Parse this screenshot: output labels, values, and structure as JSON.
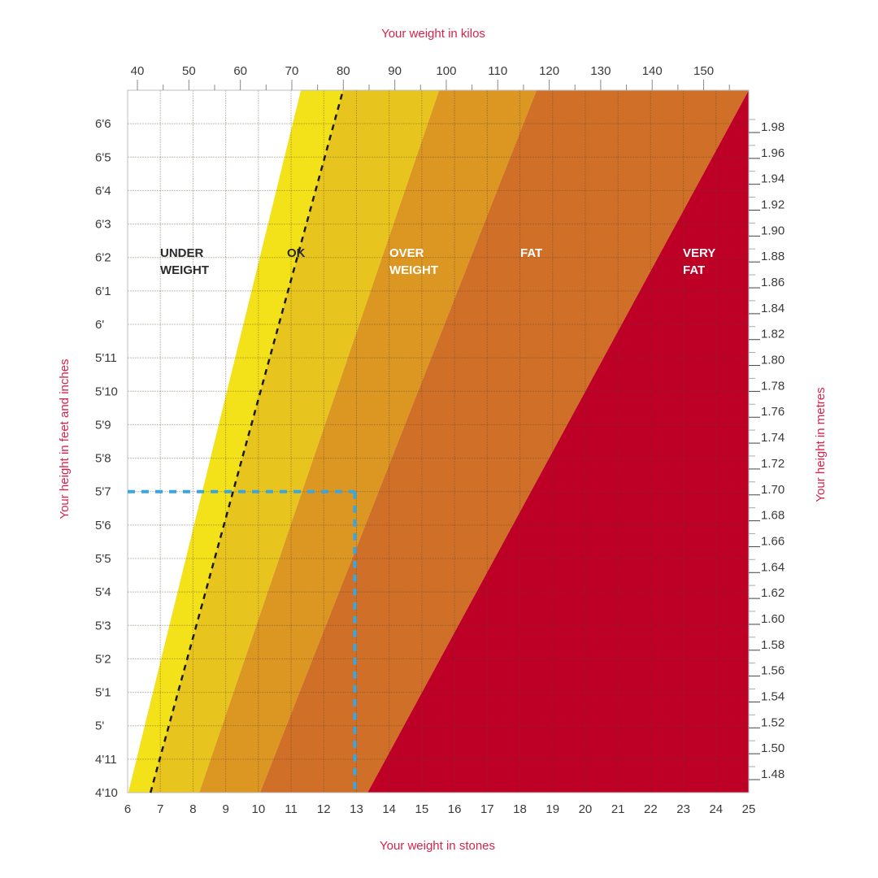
{
  "chart_data": {
    "type": "area",
    "title": "",
    "top_axis_label": "Your weight in kilos",
    "xlabel": "Your weight in stones",
    "ylabel_left": "Your height in feet and inches",
    "ylabel_right": "Your height in metres",
    "x_stones": {
      "range": [
        6,
        25
      ],
      "ticks": [
        6,
        7,
        8,
        9,
        10,
        11,
        12,
        13,
        14,
        15,
        16,
        17,
        18,
        19,
        20,
        21,
        22,
        23,
        24,
        25
      ]
    },
    "x_kilos": {
      "ticks": [
        40,
        50,
        60,
        70,
        80,
        90,
        100,
        110,
        120,
        130,
        140,
        150
      ],
      "minor_step": 5
    },
    "y_feet_inches": {
      "range_inches": [
        58,
        79
      ],
      "ticks": [
        {
          "label": "6'6",
          "inches": 78
        },
        {
          "label": "6'5",
          "inches": 77
        },
        {
          "label": "6'4",
          "inches": 76
        },
        {
          "label": "6'3",
          "inches": 75
        },
        {
          "label": "6'2",
          "inches": 74
        },
        {
          "label": "6'1",
          "inches": 73
        },
        {
          "label": "6'",
          "inches": 72
        },
        {
          "label": "5'11",
          "inches": 71
        },
        {
          "label": "5'10",
          "inches": 70
        },
        {
          "label": "5'9",
          "inches": 69
        },
        {
          "label": "5'8",
          "inches": 68
        },
        {
          "label": "5'7",
          "inches": 67
        },
        {
          "label": "5'6",
          "inches": 66
        },
        {
          "label": "5'5",
          "inches": 65
        },
        {
          "label": "5'4",
          "inches": 64
        },
        {
          "label": "5'3",
          "inches": 63
        },
        {
          "label": "5'2",
          "inches": 62
        },
        {
          "label": "5'1",
          "inches": 61
        },
        {
          "label": "5'",
          "inches": 60
        },
        {
          "label": "4'11",
          "inches": 59
        },
        {
          "label": "4'10",
          "inches": 58
        }
      ]
    },
    "y_metres": {
      "ticks": [
        "1.98",
        "1.96",
        "1.94",
        "1.92",
        "1.90",
        "1.88",
        "1.86",
        "1.84",
        "1.82",
        "1.80",
        "1.78",
        "1.76",
        "1.74",
        "1.72",
        "1.70",
        "1.68",
        "1.66",
        "1.64",
        "1.62",
        "1.60",
        "1.58",
        "1.56",
        "1.54",
        "1.52",
        "1.50",
        "1.48"
      ]
    },
    "zones": [
      {
        "name": "UNDER WEIGHT",
        "lines": [
          "UNDER",
          "WEIGHT"
        ],
        "color": "#ffffff",
        "label_color": "#2a2a2a",
        "right_boundary_stones": {
          "at_4ft10": 6.02,
          "at_6ft7": 11.3
        }
      },
      {
        "name": "OK (lower)",
        "lines": [],
        "color": "#f3e11a",
        "right_boundary_stones": {
          "at_4ft10": 6.7,
          "at_6ft7": 12.59
        }
      },
      {
        "name": "OK",
        "lines": [
          "OK"
        ],
        "color": "#e8c51e",
        "label_color": "#2a2a2a",
        "right_boundary_stones": {
          "at_4ft10": 8.19,
          "at_6ft7": 15.53
        }
      },
      {
        "name": "OVER WEIGHT",
        "lines": [
          "OVER",
          "WEIGHT"
        ],
        "color": "#dc9622",
        "label_color": "#ffffff",
        "right_boundary_stones": {
          "at_4ft10": 10.05,
          "at_6ft7": 18.51
        }
      },
      {
        "name": "FAT",
        "lines": [
          "FAT"
        ],
        "color": "#d06f27",
        "label_color": "#ffffff",
        "right_boundary_stones": {
          "at_4ft10": 13.34,
          "at_6ft7": 25.0
        }
      },
      {
        "name": "VERY FAT",
        "lines": [
          "VERY",
          "FAT"
        ],
        "color": "#be0027",
        "label_color": "#ffffff",
        "right_boundary_stones": {
          "at_4ft10": 25.0,
          "at_6ft7": 25.0
        }
      }
    ],
    "ideal_line": {
      "style": "dashed",
      "color": "#1a1a1a",
      "from": {
        "stones": 6.7,
        "height": "4'10"
      },
      "to": {
        "stones": 12.59,
        "height": "6'7"
      }
    },
    "example_marker": {
      "color": "#3aa6e0",
      "height": "5'7",
      "height_inches": 67,
      "weight_stones": 13,
      "style": "dashed"
    }
  }
}
